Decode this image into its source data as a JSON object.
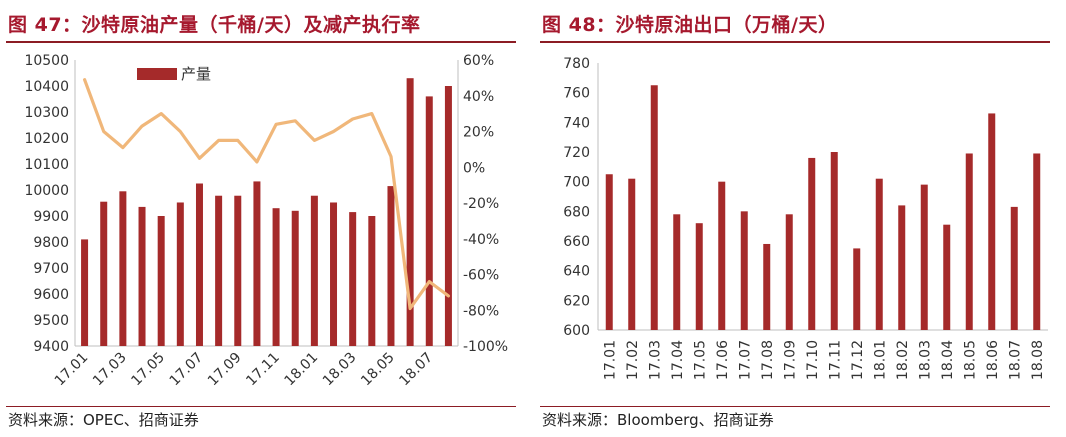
{
  "left": {
    "title": "图 47：沙特原油产量（千桶/天）及减产执行率",
    "source": "资料来源：OPEC、招商证券",
    "chart_data": {
      "type": "bar",
      "categories": [
        "17.01",
        "17.02",
        "17.03",
        "17.04",
        "17.05",
        "17.06",
        "17.07",
        "17.08",
        "17.09",
        "17.10",
        "17.11",
        "17.12",
        "18.01",
        "18.02",
        "18.03",
        "18.04",
        "18.05",
        "18.06",
        "18.07",
        "18.08"
      ],
      "x_tick_labels": [
        "17.01",
        "17.03",
        "17.05",
        "17.07",
        "17.09",
        "17.11",
        "18.01",
        "18.03",
        "18.05",
        "18.07"
      ],
      "series": [
        {
          "name": "产量",
          "type": "bar",
          "axis": "left",
          "color": "#a52a2a",
          "values": [
            9810,
            9955,
            9995,
            9935,
            9900,
            9952,
            10025,
            9978,
            9978,
            10033,
            9930,
            9920,
            9978,
            9952,
            9915,
            9900,
            10015,
            10430,
            10360,
            10400
          ]
        },
        {
          "type": "line",
          "axis": "right",
          "color": "#f0b77a",
          "values": [
            49,
            20,
            11,
            23,
            30,
            20,
            5,
            15,
            15,
            3,
            24,
            26,
            15,
            20,
            27,
            30,
            6,
            -79,
            -64,
            -72
          ]
        }
      ],
      "y_left": {
        "min": 9400,
        "max": 10500,
        "step": 100,
        "tick_labels": [
          "9400",
          "9500",
          "9600",
          "9700",
          "9800",
          "9900",
          "10000",
          "10100",
          "10200",
          "10300",
          "10400",
          "10500"
        ]
      },
      "y_right": {
        "min": -100,
        "max": 60,
        "step": 20,
        "tick_labels": [
          "-100%",
          "-80%",
          "-60%",
          "-40%",
          "-20%",
          "0%",
          "20%",
          "40%",
          "60%"
        ]
      },
      "legend": "top-left",
      "grid": false
    }
  },
  "right": {
    "title": "图 48：沙特原油出口（万桶/天）",
    "source": "资料来源：Bloomberg、招商证券",
    "chart_data": {
      "type": "bar",
      "categories": [
        "17.01",
        "17.02",
        "17.03",
        "17.04",
        "17.05",
        "17.06",
        "17.07",
        "17.08",
        "17.09",
        "17.10",
        "17.11",
        "17.12",
        "18.01",
        "18.02",
        "18.03",
        "18.04",
        "18.05",
        "18.06",
        "18.07",
        "18.08"
      ],
      "series": [
        {
          "color": "#a52a2a",
          "values": [
            705,
            702,
            765,
            678,
            672,
            700,
            680,
            658,
            678,
            716,
            720,
            655,
            702,
            684,
            698,
            671,
            719,
            746,
            683,
            719
          ]
        }
      ],
      "y": {
        "min": 600,
        "max": 780,
        "step": 20,
        "tick_labels": [
          "600",
          "620",
          "640",
          "660",
          "680",
          "700",
          "720",
          "740",
          "760",
          "780"
        ]
      },
      "grid": false
    }
  }
}
